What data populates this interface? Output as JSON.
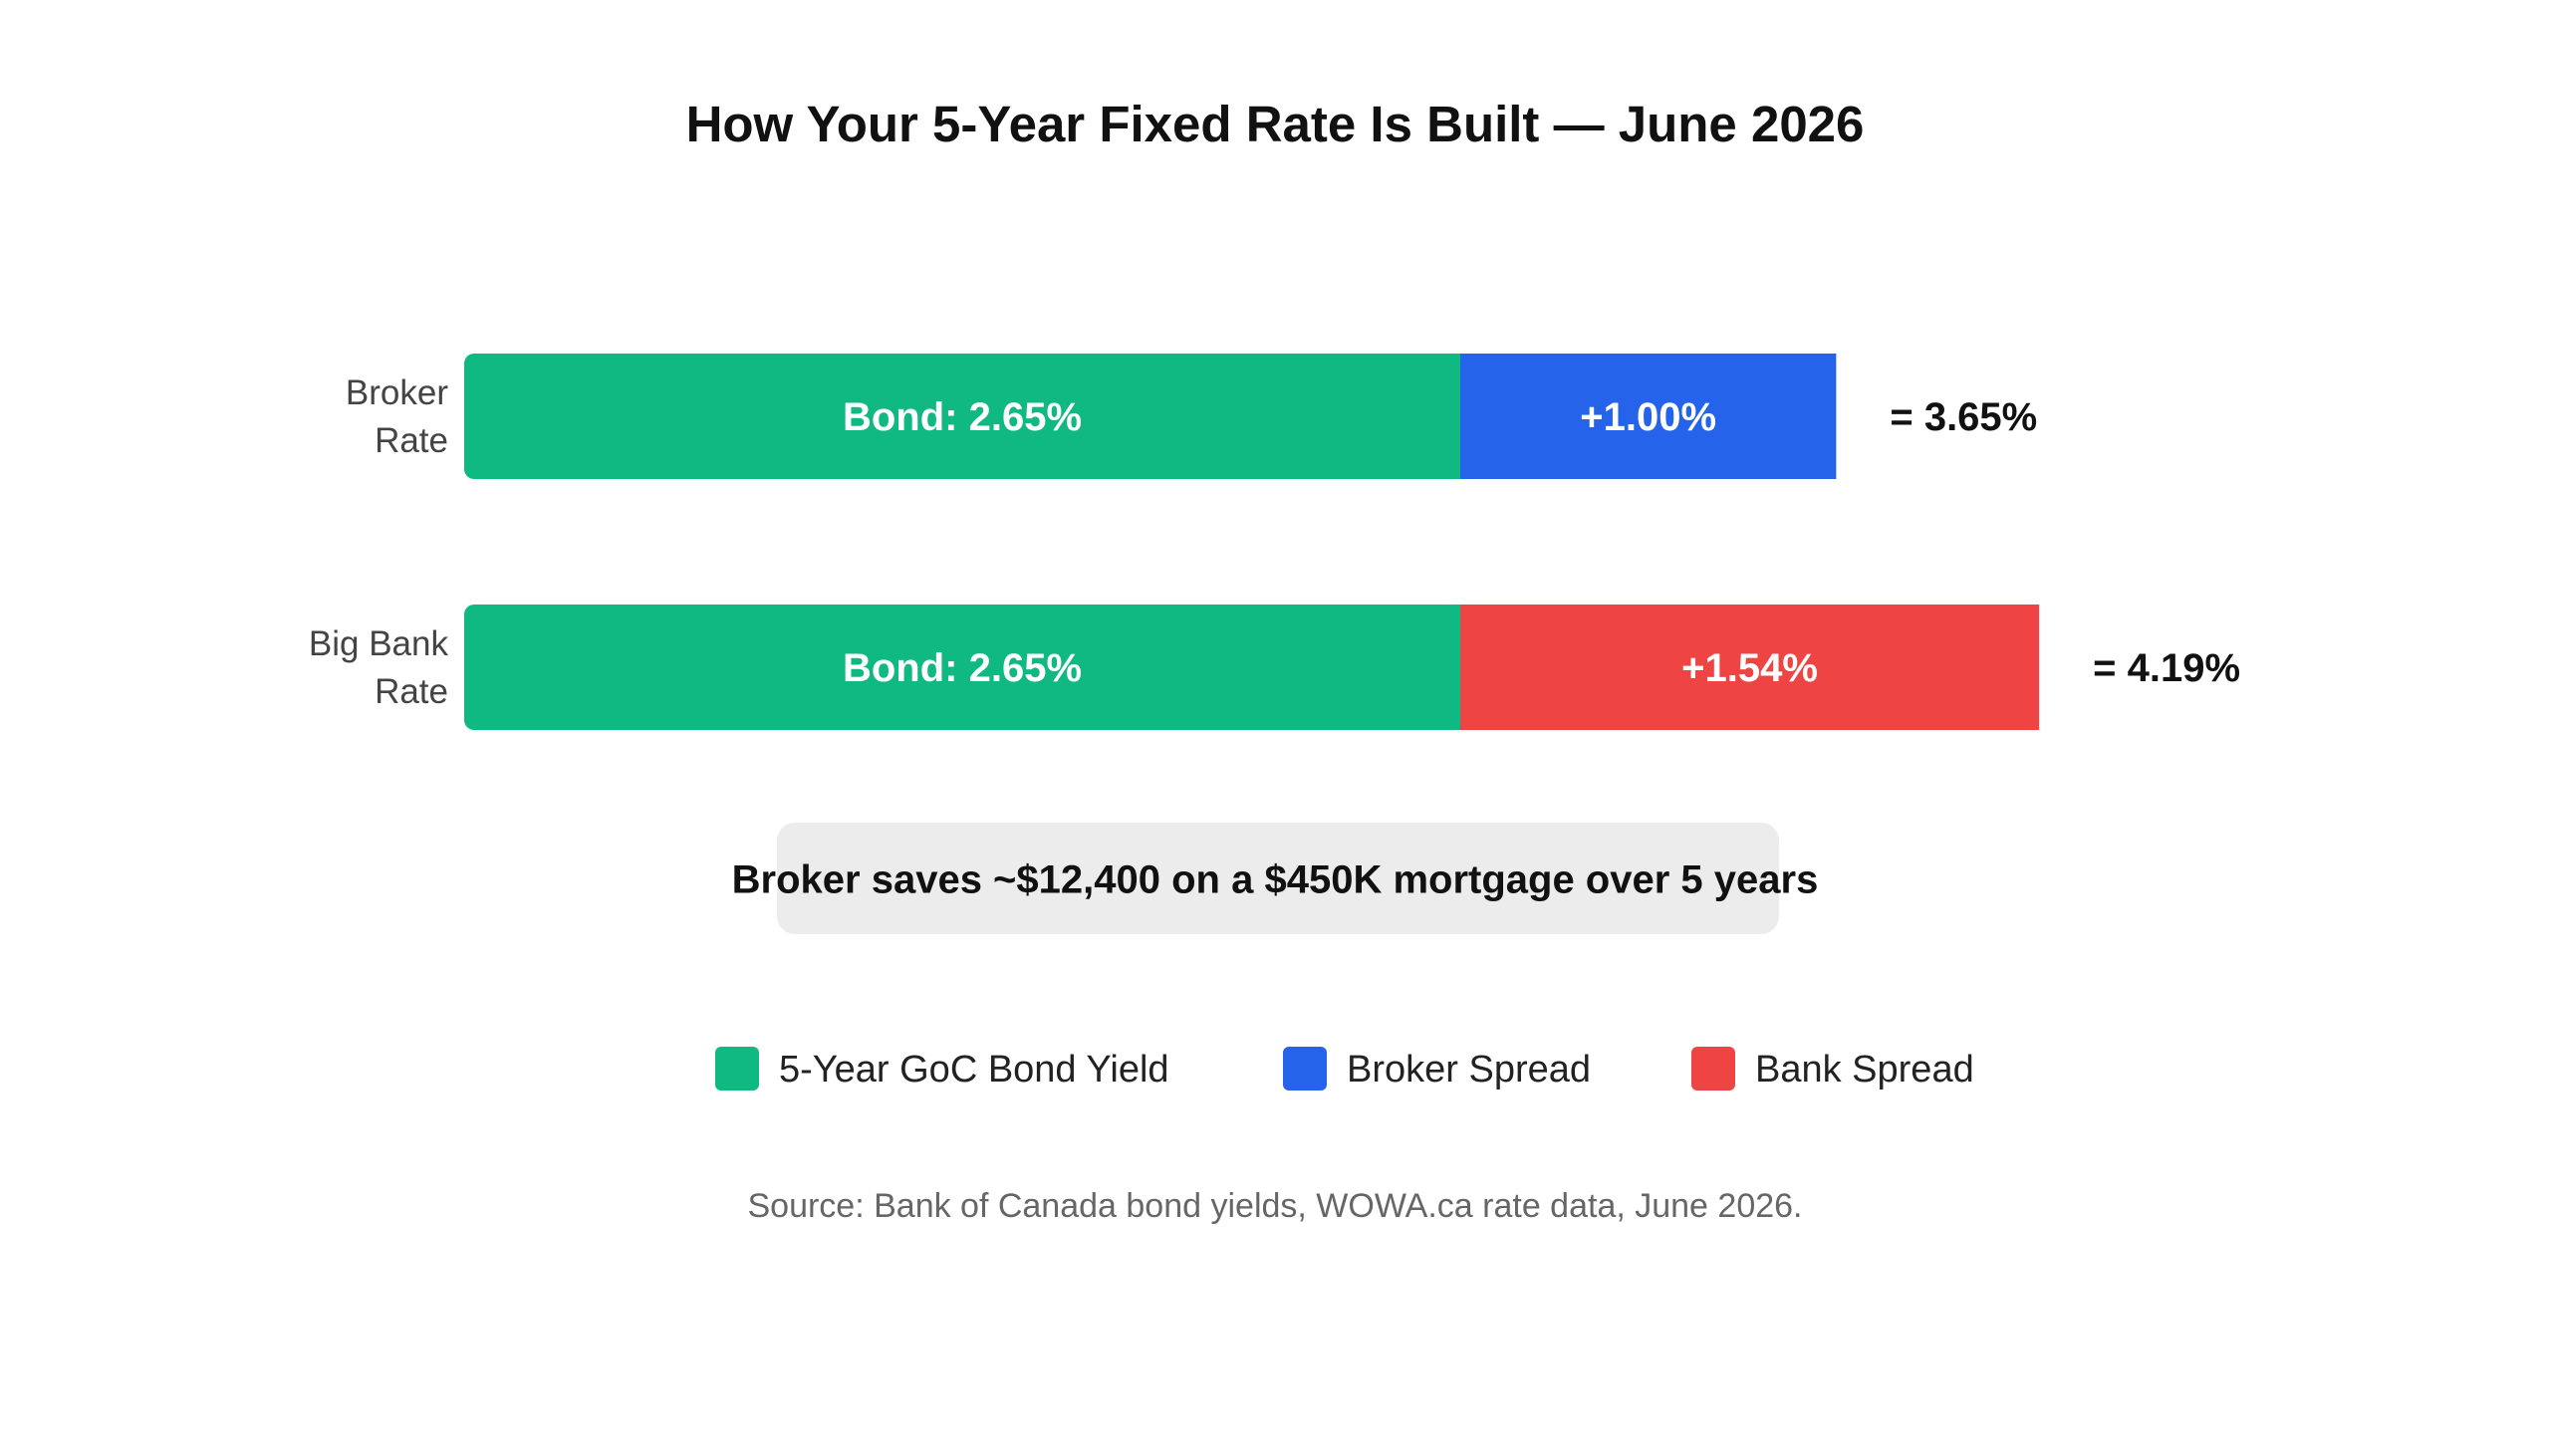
{
  "chart_data": {
    "type": "bar",
    "orientation": "horizontal",
    "stacked": true,
    "title": "How Your 5-Year Fixed Rate Is Built — June 2026",
    "categories": [
      "Broker\nRate",
      "Big Bank\nRate"
    ],
    "series": [
      {
        "name": "5-Year GoC Bond Yield",
        "color": "#10b981",
        "values": [
          2.65,
          2.65
        ],
        "labels": [
          "Bond: 2.65%",
          "Bond: 2.65%"
        ]
      },
      {
        "name": "Broker Spread",
        "color": "#2563eb",
        "values": [
          1.0,
          null
        ],
        "labels": [
          "+1.00%",
          ""
        ]
      },
      {
        "name": "Bank Spread",
        "color": "#ef4444",
        "values": [
          null,
          1.54
        ],
        "labels": [
          "",
          "+1.54%"
        ]
      }
    ],
    "totals": [
      "= 3.65%",
      "= 4.19%"
    ],
    "xlim": [
      0,
      5.1
    ],
    "grid": false,
    "legend": "bottom",
    "annotation": "Broker saves ~$12,400 on a $450K mortgage over 5 years",
    "source": "Source: Bank of Canada bond yields, WOWA.ca rate data, June 2026."
  }
}
